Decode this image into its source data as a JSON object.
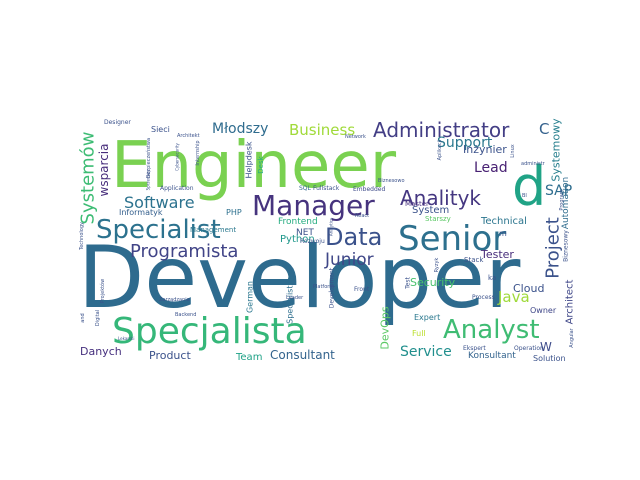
{
  "cloud": {
    "words": [
      {
        "text": "Developer",
        "color": "#2e6b8e",
        "vertical": false
      },
      {
        "text": "Engineer",
        "color": "#7ad151",
        "vertical": false
      },
      {
        "text": "Specjalista",
        "color": "#35b779",
        "vertical": false
      },
      {
        "text": "d",
        "color": "#20a386",
        "vertical": false
      },
      {
        "text": "Manager",
        "color": "#46337e",
        "vertical": false
      },
      {
        "text": "Senior",
        "color": "#2d708e",
        "vertical": false
      },
      {
        "text": "Specialist",
        "color": "#2c728e",
        "vertical": false
      },
      {
        "text": "Analyst",
        "color": "#3fbc73",
        "vertical": false
      },
      {
        "text": "Data",
        "color": "#3b528b",
        "vertical": false
      },
      {
        "text": "Administrator",
        "color": "#433e85",
        "vertical": false
      },
      {
        "text": "Programista",
        "color": "#414487",
        "vertical": false
      },
      {
        "text": "Analityk",
        "color": "#453781",
        "vertical": false
      },
      {
        "text": "Software",
        "color": "#2c728e",
        "vertical": false
      },
      {
        "text": "Project",
        "color": "#3b528b",
        "vertical": true
      },
      {
        "text": "Junior",
        "color": "#3f4788",
        "vertical": false
      },
      {
        "text": "Business",
        "color": "#a0da39",
        "vertical": false
      },
      {
        "text": "Młodszy",
        "color": "#2f6c8e",
        "vertical": false
      },
      {
        "text": "Java",
        "color": "#9fda3a",
        "vertical": false
      },
      {
        "text": "Service",
        "color": "#218f8d",
        "vertical": false
      },
      {
        "text": "Consultant",
        "color": "#33638d",
        "vertical": false
      },
      {
        "text": "Systemów",
        "color": "#3dbc74",
        "vertical": true
      },
      {
        "text": "Support",
        "color": "#2a788e",
        "vertical": false
      },
      {
        "text": "Lead",
        "color": "#482173",
        "vertical": false
      },
      {
        "text": "SAP",
        "color": "#2e6d8e",
        "vertical": false
      },
      {
        "text": "Product",
        "color": "#3b528b",
        "vertical": false
      },
      {
        "text": "Danych",
        "color": "#46307e",
        "vertical": false
      },
      {
        "text": "DevOps",
        "color": "#5ac864",
        "vertical": true
      },
      {
        "text": "wsparcia",
        "color": "#472d7b",
        "vertical": true
      },
      {
        "text": "C",
        "color": "#34618d",
        "vertical": false
      },
      {
        "text": "W",
        "color": "#3e4c8a",
        "vertical": false
      },
      {
        "text": "Inżynier",
        "color": "#3b528b",
        "vertical": false
      },
      {
        "text": "Systemowy",
        "color": "#277f8e",
        "vertical": true
      },
      {
        "text": "Automation",
        "color": "#2f6c8e",
        "vertical": true
      },
      {
        "text": "Architect",
        "color": "#3f4788",
        "vertical": true
      },
      {
        "text": "Security",
        "color": "#4ac16d",
        "vertical": false
      },
      {
        "text": "Tester",
        "color": "#472c7a",
        "vertical": false
      },
      {
        "text": "Cloud",
        "color": "#3b528b",
        "vertical": false
      },
      {
        "text": "System",
        "color": "#3b528b",
        "vertical": false
      },
      {
        "text": "Technical",
        "color": "#2b758e",
        "vertical": false
      },
      {
        "text": "Team",
        "color": "#1fa287",
        "vertical": false
      },
      {
        "text": "Konsultant",
        "color": "#33638d",
        "vertical": false
      },
      {
        "text": "NET",
        "color": "#3b528b",
        "vertical": false
      },
      {
        "text": "Python",
        "color": "#1f988b",
        "vertical": false
      },
      {
        "text": "Frontend",
        "color": "#27ad81",
        "vertical": false
      },
      {
        "text": "Informatyk",
        "color": "#35608d",
        "vertical": false
      },
      {
        "text": "German",
        "color": "#2a768e",
        "vertical": true
      },
      {
        "text": "Specjalistka",
        "color": "#2e6e8e",
        "vertical": true
      },
      {
        "text": "Helpdesk",
        "color": "#3b528b",
        "vertical": true
      },
      {
        "text": "PHP",
        "color": "#2d708e",
        "vertical": false
      },
      {
        "text": "Expert",
        "color": "#2a788e",
        "vertical": false
      },
      {
        "text": "Owner",
        "color": "#3f4788",
        "vertical": false
      },
      {
        "text": "Full",
        "color": "#bade28",
        "vertical": false
      },
      {
        "text": "Solution",
        "color": "#3b528b",
        "vertical": false
      },
      {
        "text": "Sieci",
        "color": "#3b528b",
        "vertical": false
      },
      {
        "text": "Stack",
        "color": "#3b528b",
        "vertical": false
      },
      {
        "text": "Master",
        "color": "#46307e",
        "vertical": false
      },
      {
        "text": "Starszy",
        "color": "#5ac864",
        "vertical": false
      },
      {
        "text": "Management",
        "color": "#2a788e",
        "vertical": false
      },
      {
        "text": "Fullstack",
        "color": "#3b528b",
        "vertical": false
      },
      {
        "text": "SQL",
        "color": "#31688e",
        "vertical": false
      },
      {
        "text": "Rozwoju",
        "color": "#3b528b",
        "vertical": false
      },
      {
        "text": "Desk",
        "color": "#26ad81",
        "vertical": true
      },
      {
        "text": "Embedded",
        "color": "#3e4a89",
        "vertical": false
      },
      {
        "text": "Application",
        "color": "#3b528b",
        "vertical": false
      },
      {
        "text": "Designer",
        "color": "#3b528b",
        "vertical": false
      },
      {
        "text": "Architekt",
        "color": "#3b528b",
        "vertical": false
      },
      {
        "text": "Process",
        "color": "#3b528b",
        "vertical": false
      },
      {
        "text": "Operation",
        "color": "#3b528b",
        "vertical": false
      },
      {
        "text": "Ekspert",
        "color": "#3b528b",
        "vertical": false
      },
      {
        "text": "Zarządzania",
        "color": "#3b528b",
        "vertical": false
      },
      {
        "text": "Backend",
        "color": "#3b528b",
        "vertical": false
      },
      {
        "text": "Leader",
        "color": "#3b528b",
        "vertical": false
      },
      {
        "text": "Development",
        "color": "#3b528b",
        "vertical": true
      },
      {
        "text": "Front",
        "color": "#3b528b",
        "vertical": false
      },
      {
        "text": "Test",
        "color": "#3b528b",
        "vertical": true
      },
      {
        "text": "Biznesowy",
        "color": "#3b528b",
        "vertical": true
      },
      {
        "text": "Projektów",
        "color": "#3b528b",
        "vertical": true
      },
      {
        "text": "Technology",
        "color": "#3b528b",
        "vertical": true
      },
      {
        "text": "Digital",
        "color": "#3b528b",
        "vertical": true
      },
      {
        "text": "Internship",
        "color": "#3b528b",
        "vertical": true
      },
      {
        "text": "Bezpieczeństwa",
        "color": "#3b528b",
        "vertical": true
      },
      {
        "text": "Network",
        "color": "#3b528b",
        "vertical": false
      },
      {
        "text": "Linux",
        "color": "#3b528b",
        "vertical": true
      },
      {
        "text": "administr",
        "color": "#3b528b",
        "vertical": false
      },
      {
        "text": "Program",
        "color": "#3b528b",
        "vertical": true
      },
      {
        "text": "React",
        "color": "#3b528b",
        "vertical": false
      },
      {
        "text": "Angular",
        "color": "#3b528b",
        "vertical": true
      },
      {
        "text": "Platform",
        "color": "#3b528b",
        "vertical": false
      },
      {
        "text": "Biznesowo",
        "color": "#3b528b",
        "vertical": false
      },
      {
        "text": "Ryzyk",
        "color": "#3b528b",
        "vertical": true
      },
      {
        "text": "BI",
        "color": "#3b528b",
        "vertical": false
      },
      {
        "text": "ka",
        "color": "#3b528b",
        "vertical": false
      },
      {
        "text": "m",
        "color": "#3b528b",
        "vertical": false
      },
      {
        "text": "Aplikacji",
        "color": "#3b528b",
        "vertical": true
      },
      {
        "text": "and",
        "color": "#3b528b",
        "vertical": true
      },
      {
        "text": "Sprzedaży",
        "color": "#3b528b",
        "vertical": true
      },
      {
        "text": "Cybersecurity",
        "color": "#3b528b",
        "vertical": true
      },
      {
        "text": "Analytics",
        "color": "#3b528b",
        "vertical": true
      },
      {
        "text": "Lekarski",
        "color": "#3b528b",
        "vertical": false
      }
    ]
  }
}
